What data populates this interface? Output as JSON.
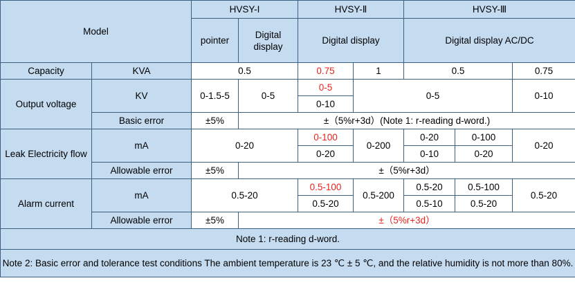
{
  "header": {
    "model": "Model",
    "hvsy1": "HVSY-I",
    "hvsy2": "HVSY-Ⅱ",
    "hvsy3": "HVSY-Ⅲ",
    "pointer": "pointer",
    "digital_display_1": "Digital display",
    "digital_display_2": "Digital display",
    "digital_display_acdc": "Digital display AC/DC"
  },
  "capacity": {
    "label": "Capacity",
    "unit": "KVA",
    "v1": "0.5",
    "v2": "0.75",
    "v3": "1",
    "v4": "0.5",
    "v5": "0.75"
  },
  "output_voltage": {
    "label": "Output voltage",
    "unit": "KV",
    "pointer": "0-1.5-5",
    "digital": "0-5",
    "hvsy2_top": "0-5",
    "hvsy2_bottom": "0-10",
    "hvsy3_mid": "0-5",
    "hvsy3_right": "0-10",
    "basic_error_label": "Basic error",
    "basic_error_pointer": "±5%",
    "basic_error_rest": "±（5%r+3d）(Note 1: r-reading d-word.)"
  },
  "leak": {
    "label": "Leak Electricity flow",
    "unit": "mA",
    "left": "0-20",
    "hvsy2_top": "0-100",
    "hvsy2_bottom": "0-20",
    "hvsy2_b": "0-200",
    "hvsy3_a_top": "0-20",
    "hvsy3_a_bottom": "0-10",
    "hvsy3_b_top": "0-100",
    "hvsy3_b_bottom": "0-20",
    "hvsy3_c": "0-20",
    "allow_label": "Allowable error",
    "allow_pointer": "±5%",
    "allow_rest": "±（5%r+3d）"
  },
  "alarm": {
    "label": "Alarm current",
    "unit": "mA",
    "left": "0.5-20",
    "hvsy2_top": "0.5-100",
    "hvsy2_bottom": "0.5-20",
    "hvsy2_b": "0.5-200",
    "hvsy3_a_top": "0.5-20",
    "hvsy3_a_bottom": "0.5-10",
    "hvsy3_b_top": "0.5-100",
    "hvsy3_b_bottom": "0.5-20",
    "hvsy3_c": "0.5-20",
    "allow_label": "Allowable error",
    "allow_pointer": "±5%",
    "allow_rest": "±（5%r+3d）"
  },
  "notes": {
    "note1": "Note 1: r-reading d-word.",
    "note2": "Note 2: Basic error and tolerance test conditions The ambient temperature is 23 ℃ ± 5 ℃, and the relative humidity is not more than 80%."
  },
  "colors": {
    "header_bg": "#c5dbf0",
    "border": "#3a5f82",
    "highlight_red": "#e8231b"
  }
}
